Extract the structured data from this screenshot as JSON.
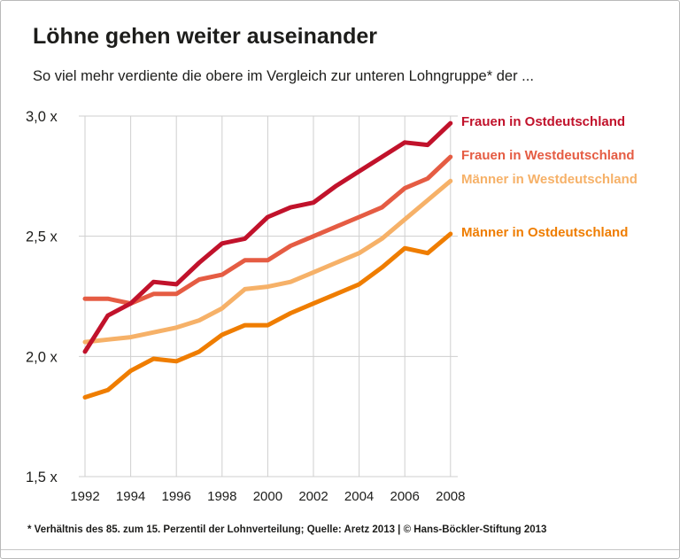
{
  "header": {
    "title": "Löhne gehen weiter auseinander",
    "subtitle": "So viel mehr verdiente die obere im Vergleich zur unteren Lohngruppe* der ..."
  },
  "footer": {
    "note": "* Verhältnis des 85. zum 15. Perzentil der Lohnverteilung; Quelle: Aretz 2013 | © Hans-Böckler-Stiftung 2013"
  },
  "chart_data": {
    "type": "line",
    "title": "Löhne gehen weiter auseinander",
    "subtitle": "So viel mehr verdiente die obere im Vergleich zur unteren Lohngruppe* der ...",
    "x": [
      1992,
      1993,
      1994,
      1995,
      1996,
      1997,
      1998,
      1999,
      2000,
      2001,
      2002,
      2003,
      2004,
      2005,
      2006,
      2007,
      2008
    ],
    "x_tick_values": [
      1992,
      1994,
      1996,
      1998,
      2000,
      2002,
      2004,
      2006,
      2008
    ],
    "x_tick_labels": [
      "1992",
      "1994",
      "1996",
      "1998",
      "2000",
      "2002",
      "2004",
      "2006",
      "2008"
    ],
    "y_tick_values": [
      3.0,
      2.5,
      2.0,
      1.5
    ],
    "y_tick_labels": [
      "3,0 x",
      "2,5 x",
      "2,0 x",
      "1,5 x"
    ],
    "ylim": [
      1.5,
      3.0
    ],
    "grid": true,
    "legend_position": "right-of-line-ends",
    "series": [
      {
        "name": "Frauen in Ostdeutschland",
        "color": "#c1122b",
        "values": [
          2.02,
          2.17,
          2.22,
          2.31,
          2.3,
          2.39,
          2.47,
          2.49,
          2.58,
          2.62,
          2.64,
          2.71,
          2.77,
          2.83,
          2.89,
          2.88,
          2.97
        ]
      },
      {
        "name": "Frauen in Westdeutschland",
        "color": "#e55c43",
        "values": [
          2.24,
          2.24,
          2.22,
          2.26,
          2.26,
          2.32,
          2.34,
          2.4,
          2.4,
          2.46,
          2.5,
          2.54,
          2.58,
          2.62,
          2.7,
          2.74,
          2.83
        ]
      },
      {
        "name": "Männer in Westdeutschland",
        "color": "#f6b168",
        "values": [
          2.06,
          2.07,
          2.08,
          2.1,
          2.12,
          2.15,
          2.2,
          2.28,
          2.29,
          2.31,
          2.35,
          2.39,
          2.43,
          2.49,
          2.57,
          2.65,
          2.73
        ]
      },
      {
        "name": "Männer in Ostdeutschland",
        "color": "#ef7d00",
        "values": [
          1.83,
          1.86,
          1.94,
          1.99,
          1.98,
          2.02,
          2.09,
          2.13,
          2.13,
          2.18,
          2.22,
          2.26,
          2.3,
          2.37,
          2.45,
          2.43,
          2.51
        ]
      }
    ]
  }
}
